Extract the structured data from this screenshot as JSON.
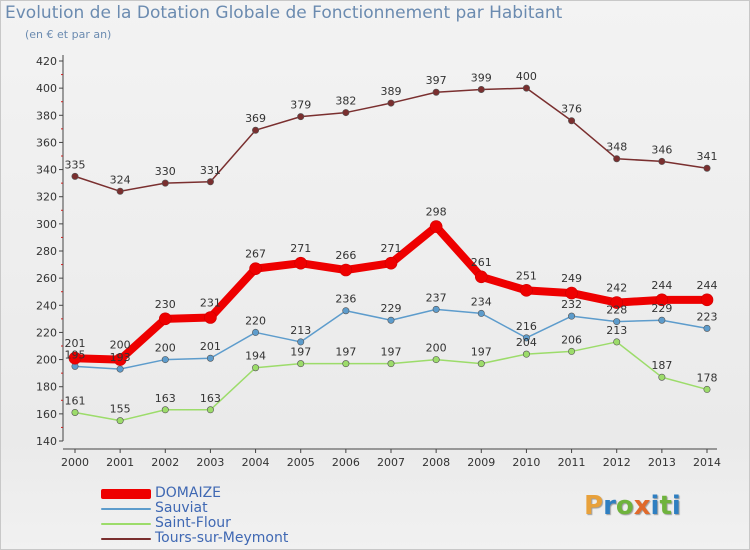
{
  "header": {
    "title": "Evolution de la Dotation Globale de Fonctionnement par Habitant",
    "subtitle": "(en € et par an)"
  },
  "logo": {
    "text": "Proxiti",
    "colors": [
      "#e8a13b",
      "#2f7fc1",
      "#6fb33d",
      "#e06a2b",
      "#2f7fc1",
      "#6fb33d",
      "#2f7fc1"
    ]
  },
  "chart_data": {
    "type": "line",
    "x": [
      "2000",
      "2001",
      "2002",
      "2003",
      "2004",
      "2005",
      "2006",
      "2007",
      "2008",
      "2009",
      "2010",
      "2011",
      "2012",
      "2013",
      "2014"
    ],
    "ylim": [
      140,
      420
    ],
    "yticks": [
      140,
      160,
      180,
      200,
      220,
      240,
      260,
      280,
      300,
      320,
      340,
      360,
      380,
      400,
      420
    ],
    "grid": false,
    "legend_position": "bottom-left",
    "series": [
      {
        "name": "Tours-sur-Meymont",
        "color": "#7a2f2f",
        "values": [
          335,
          324,
          330,
          331,
          369,
          379,
          382,
          389,
          397,
          399,
          400,
          376,
          348,
          346,
          341
        ]
      },
      {
        "name": "Sauviat",
        "color": "#5d9ccc",
        "values": [
          195,
          193,
          200,
          201,
          220,
          213,
          236,
          229,
          237,
          234,
          216,
          232,
          228,
          229,
          223
        ]
      },
      {
        "name": "Saint-Flour",
        "color": "#9cdc6a",
        "values": [
          161,
          155,
          163,
          163,
          194,
          197,
          197,
          197,
          200,
          197,
          204,
          206,
          213,
          187,
          178
        ]
      },
      {
        "name": "DOMAIZE",
        "color": "#ee0000",
        "values": [
          201,
          200,
          230,
          231,
          267,
          271,
          266,
          271,
          298,
          261,
          251,
          249,
          242,
          244,
          244
        ]
      }
    ],
    "legend": [
      {
        "name": "DOMAIZE",
        "color": "#ee0000",
        "text_color": "#3f68b3"
      },
      {
        "name": "Sauviat",
        "color": "#5d9ccc",
        "text_color": "#3f68b3"
      },
      {
        "name": "Saint-Flour",
        "color": "#9cdc6a",
        "text_color": "#3f68b3"
      },
      {
        "name": "Tours-sur-Meymont",
        "color": "#7a2f2f",
        "text_color": "#3f68b3"
      }
    ]
  }
}
